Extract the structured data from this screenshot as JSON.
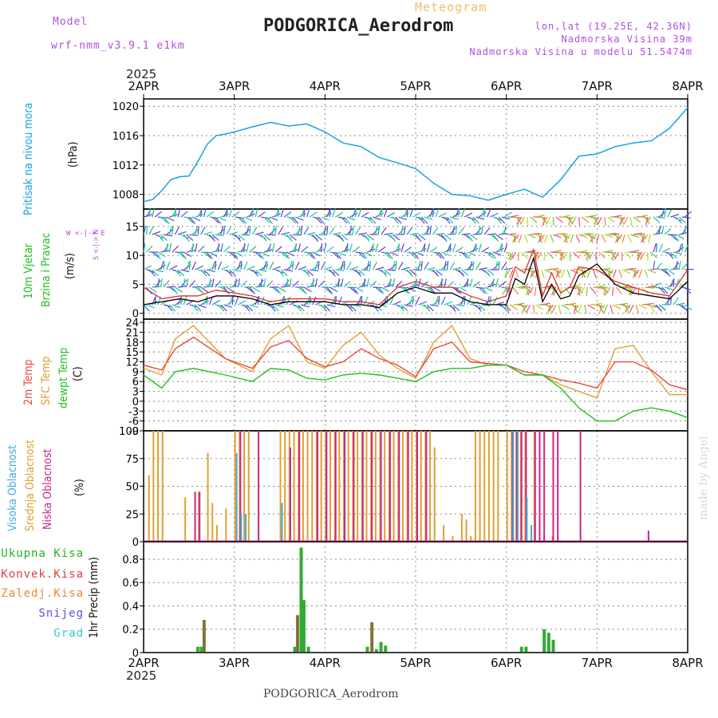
{
  "header": {
    "title": "PODGORICA_Aerodrom",
    "meteogram": "Meteogram",
    "model_label": "Model",
    "model_name": "wrf-nmm_v3.9.1 e1km",
    "lonlat": "lon,lat (19.25E, 42.36N)",
    "elevation": "Nadmorska Visina 39m",
    "model_elevation": "Nadmorska Visina u modelu 51.5474m",
    "footer_title": "PODGORICA_Aerodrom",
    "year": "2025",
    "credit": "made by Angel"
  },
  "colors": {
    "pressure": "#1ba1e2",
    "wind_speed": "#000000",
    "wind_gust": "#e03030",
    "temp_2m": "#e84a3a",
    "temp_sfc": "#e0a030",
    "dewpoint": "#22c022",
    "cloud_high": "#44aadd",
    "cloud_mid": "#e0a030",
    "cloud_low": "#cc2288",
    "precip_total": "#33aa33",
    "precip_conv": "#d84040",
    "precip_frz": "#ee8833",
    "snow": "#5555dd",
    "hail": "#33cccc"
  },
  "chart_data": [
    {
      "type": "line",
      "panel": "pressure",
      "x_ticks": [
        "2APR",
        "3APR",
        "4APR",
        "5APR",
        "6APR",
        "7APR",
        "8APR"
      ],
      "ylabel_left": "Pritisak na nivou mora",
      "ylabel_unit": "(hPa)",
      "ylim": [
        1006,
        1021
      ],
      "y_ticks": [
        "1008",
        "1012",
        "1016",
        "1020"
      ],
      "grid": true,
      "series": [
        {
          "x": [
            0,
            0.1,
            0.2,
            0.3,
            0.4,
            0.5,
            0.6,
            0.7,
            0.8,
            0.9,
            1.0,
            1.2,
            1.4,
            1.6,
            1.8,
            2.0,
            2.2,
            2.4,
            2.6,
            2.8,
            3.0,
            3.2,
            3.4,
            3.6,
            3.8,
            4.0,
            4.2,
            4.4,
            4.6,
            4.8,
            5.0,
            5.2,
            5.4,
            5.6,
            5.8,
            6.0
          ],
          "values": [
            1007,
            1007.3,
            1008.5,
            1010.0,
            1010.4,
            1010.5,
            1012.5,
            1014.8,
            1016.0,
            1016.2,
            1016.5,
            1017.2,
            1017.8,
            1017.3,
            1017.6,
            1016.5,
            1015.0,
            1014.5,
            1013.0,
            1012.3,
            1011.5,
            1009.5,
            1008.0,
            1007.8,
            1007.2,
            1008.0,
            1008.7,
            1007.6,
            1010.0,
            1013.2,
            1013.5,
            1014.5,
            1015.0,
            1015.3,
            1017.0,
            1019.8
          ]
        }
      ]
    },
    {
      "type": "line",
      "panel": "wind",
      "ylabel_left": "10m Vjetar",
      "ylabel_left2": "Brzina i Pravac",
      "ylabel_unit": "(m/s)",
      "compass_label": "W <-|-> E",
      "compass_label_v": "S <-|-> N",
      "ylim": [
        -1,
        18
      ],
      "y_ticks": [
        "0",
        "5",
        "10",
        "15"
      ],
      "series": [
        {
          "name": "speed",
          "x": [
            0,
            0.2,
            0.4,
            0.6,
            0.8,
            1.0,
            1.2,
            1.4,
            1.6,
            1.8,
            2.0,
            2.2,
            2.4,
            2.6,
            2.8,
            3.0,
            3.2,
            3.4,
            3.6,
            3.8,
            4.0,
            4.1,
            4.2,
            4.3,
            4.4,
            4.5,
            4.6,
            4.7,
            4.8,
            5.0,
            5.2,
            5.4,
            5.6,
            5.8,
            6.0
          ],
          "values": [
            1.5,
            2.0,
            2.5,
            2.0,
            3.0,
            3.0,
            2.5,
            1.5,
            2.0,
            2.0,
            2.0,
            1.5,
            1.5,
            1.0,
            3.5,
            4.5,
            3.5,
            3.5,
            2.0,
            1.5,
            1.5,
            6.0,
            5.0,
            9.5,
            2.0,
            5.0,
            2.5,
            3.0,
            6.5,
            8.5,
            5.0,
            3.5,
            3.0,
            2.5,
            5.5
          ]
        },
        {
          "name": "gust",
          "x": [
            0,
            0.2,
            0.4,
            0.6,
            0.8,
            1.0,
            1.2,
            1.4,
            1.6,
            1.8,
            2.0,
            2.2,
            2.4,
            2.6,
            2.8,
            3.0,
            3.2,
            3.4,
            3.6,
            3.8,
            4.0,
            4.1,
            4.2,
            4.3,
            4.4,
            4.5,
            4.6,
            4.7,
            4.8,
            5.0,
            5.2,
            5.4,
            5.6,
            5.8,
            6.0
          ],
          "values": [
            4.5,
            2.5,
            3.0,
            3.0,
            4.0,
            3.5,
            3.0,
            2.0,
            2.5,
            2.5,
            2.5,
            2.0,
            2.0,
            1.5,
            4.5,
            5.5,
            4.5,
            4.5,
            3.0,
            2.0,
            3.0,
            8.0,
            7.0,
            11.0,
            3.0,
            7.0,
            3.5,
            4.5,
            8.0,
            7.5,
            5.5,
            4.5,
            3.5,
            3.0,
            7.5
          ]
        }
      ]
    },
    {
      "type": "line",
      "panel": "temperature",
      "ylabel_left": "2m Temp",
      "ylabel_left2": "SFC Temp",
      "ylabel_left3": "dewpt Temp",
      "ylabel_unit": "(C)",
      "ylim": [
        -9,
        25
      ],
      "y_ticks": [
        "-9",
        "-6",
        "-3",
        "0",
        "3",
        "6",
        "9",
        "12",
        "15",
        "18",
        "21",
        "24"
      ],
      "series": [
        {
          "name": "2m",
          "x": [
            0,
            0.2,
            0.35,
            0.55,
            0.9,
            1.2,
            1.4,
            1.6,
            1.8,
            2.0,
            2.2,
            2.4,
            2.6,
            2.8,
            3.0,
            3.2,
            3.4,
            3.6,
            3.8,
            4.0,
            4.2,
            4.4,
            4.6,
            4.8,
            5.0,
            5.2,
            5.4,
            5.6,
            5.8,
            6.0
          ],
          "values": [
            11,
            9.5,
            16,
            19.5,
            13,
            10,
            16.5,
            18.5,
            13,
            10.5,
            12,
            16,
            13,
            11,
            7.5,
            16,
            18,
            12,
            11.5,
            11,
            9,
            8,
            6.5,
            5.5,
            4,
            12,
            12,
            9.5,
            5,
            3.5
          ]
        },
        {
          "name": "sfc",
          "x": [
            0,
            0.2,
            0.35,
            0.55,
            0.9,
            1.2,
            1.4,
            1.6,
            1.8,
            2.0,
            2.2,
            2.4,
            2.6,
            2.8,
            3.0,
            3.2,
            3.4,
            3.6,
            3.8,
            4.0,
            4.2,
            4.4,
            4.6,
            4.8,
            5.0,
            5.2,
            5.4,
            5.6,
            5.8,
            6.0
          ],
          "values": [
            10,
            8,
            19,
            23,
            13,
            9,
            19,
            23,
            12,
            10,
            17,
            21,
            14,
            10,
            7,
            18,
            23,
            13,
            11,
            11,
            8,
            8,
            5,
            3,
            1,
            16,
            17,
            9,
            2,
            2
          ]
        },
        {
          "name": "dewpt",
          "x": [
            0,
            0.2,
            0.35,
            0.55,
            0.9,
            1.2,
            1.4,
            1.6,
            1.8,
            2.0,
            2.2,
            2.4,
            2.6,
            2.8,
            3.0,
            3.2,
            3.4,
            3.6,
            3.8,
            4.0,
            4.2,
            4.4,
            4.6,
            4.8,
            5.0,
            5.2,
            5.4,
            5.6,
            5.8,
            6.0
          ],
          "values": [
            8,
            4,
            9,
            10,
            8,
            6,
            10,
            9.5,
            7,
            6.5,
            8,
            8.5,
            8,
            7,
            6,
            9,
            10,
            10,
            11,
            11,
            8,
            8,
            4,
            -2,
            -6,
            -6,
            -3,
            -2,
            -3,
            -5
          ]
        }
      ]
    },
    {
      "type": "bar",
      "panel": "clouds",
      "ylabel_left": "Visoka Oblacnost",
      "ylabel_left2": "Srednja Oblacnost",
      "ylabel_left3": "Niska Oblacnost",
      "ylabel_unit": "(%)",
      "ylim": [
        0,
        100
      ],
      "y_ticks": [
        "0",
        "25",
        "50",
        "75",
        "100"
      ],
      "series": [
        {
          "name": "mid",
          "x": [
            0.05,
            0.1,
            0.15,
            0.2,
            0.45,
            0.6,
            0.7,
            0.75,
            0.8,
            0.9,
            1.0,
            1.05,
            1.1,
            1.15,
            1.5,
            1.55,
            1.6,
            1.65,
            1.7,
            1.75,
            1.8,
            1.85,
            1.9,
            1.95,
            2.0,
            2.05,
            2.1,
            2.15,
            2.2,
            2.25,
            2.3,
            2.35,
            2.4,
            2.45,
            2.5,
            2.55,
            2.6,
            2.65,
            2.7,
            2.75,
            2.8,
            2.85,
            2.9,
            2.95,
            3.0,
            3.05,
            3.1,
            3.15,
            3.2,
            3.3,
            3.4,
            3.5,
            3.55,
            3.6,
            3.65,
            3.7,
            3.75,
            3.8,
            3.85,
            3.9,
            4.0,
            4.05,
            4.1,
            4.15,
            4.2,
            4.3,
            4.5
          ],
          "values": [
            60,
            100,
            100,
            100,
            40,
            45,
            80,
            35,
            15,
            30,
            100,
            100,
            100,
            100,
            100,
            100,
            100,
            100,
            100,
            100,
            100,
            100,
            100,
            100,
            100,
            100,
            100,
            100,
            100,
            100,
            100,
            100,
            100,
            100,
            100,
            100,
            100,
            100,
            100,
            100,
            100,
            100,
            100,
            100,
            100,
            100,
            100,
            100,
            85,
            15,
            5,
            25,
            20,
            5,
            100,
            100,
            100,
            100,
            100,
            100,
            100,
            100,
            100,
            100,
            100,
            100,
            5
          ]
        },
        {
          "name": "low",
          "x": [
            0.55,
            0.6,
            1.05,
            1.25,
            1.6,
            1.7,
            1.9,
            2.0,
            2.1,
            2.2,
            2.3,
            2.4,
            2.5,
            2.6,
            2.7,
            2.8,
            2.9,
            3.0,
            3.1,
            4.05,
            4.1,
            4.15,
            4.2,
            4.3,
            4.35,
            4.4,
            4.5,
            4.55,
            4.8,
            5.55
          ],
          "values": [
            45,
            45,
            100,
            100,
            85,
            100,
            100,
            100,
            100,
            100,
            100,
            100,
            100,
            100,
            100,
            100,
            100,
            100,
            100,
            100,
            100,
            100,
            100,
            100,
            100,
            100,
            100,
            100,
            100,
            10
          ]
        },
        {
          "name": "high",
          "x": [
            1.0,
            1.05,
            1.1,
            1.5,
            4.05,
            4.1,
            4.2,
            4.25
          ],
          "values": [
            80,
            25,
            25,
            35,
            100,
            100,
            40,
            15
          ]
        }
      ]
    },
    {
      "type": "bar",
      "panel": "precip",
      "legend": [
        "Ukupna Kisa",
        "Konvek.Kisa",
        "Zaledj.Kisa",
        "Snijeg",
        "Grad"
      ],
      "ylabel_unit": "1hr Precip (mm)",
      "ylim": [
        0,
        0.95
      ],
      "y_ticks": [
        "0",
        "0.2",
        "0.4",
        "0.6",
        "0.8"
      ],
      "series": [
        {
          "name": "total",
          "x": [
            0.58,
            0.62,
            0.65,
            1.65,
            1.68,
            1.72,
            1.75,
            1.8,
            2.45,
            2.5,
            2.55,
            2.6,
            2.65,
            4.15,
            4.2,
            4.4,
            4.45,
            4.5
          ],
          "values": [
            0.05,
            0.05,
            0.28,
            0.05,
            0.32,
            0.9,
            0.45,
            0.05,
            0.05,
            0.26,
            0.03,
            0.09,
            0.06,
            0.05,
            0.05,
            0.2,
            0.17,
            0.11
          ]
        },
        {
          "name": "convective",
          "x": [
            0.65,
            1.68,
            2.5
          ],
          "values": [
            0.28,
            0.32,
            0.26
          ]
        }
      ]
    }
  ]
}
